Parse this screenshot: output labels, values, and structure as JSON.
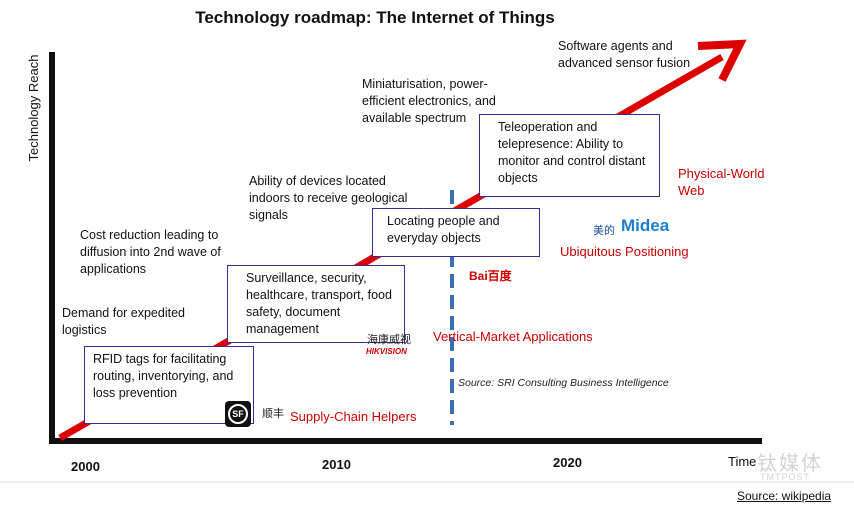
{
  "title": "Technology roadmap: The Internet of Things",
  "y_axis_label": "Technology Reach",
  "x_axis": {
    "ticks": [
      "2000",
      "2010",
      "2020"
    ],
    "label": "Time"
  },
  "annotations": {
    "demand": "Demand for expedited logistics",
    "cost": "Cost reduction leading to diffusion into 2nd wave of applications",
    "ability": "Ability of devices located indoors to receive geological signals",
    "miniaturisation": "Miniaturisation, power-efficient electronics, and available spectrum",
    "software": "Software agents and advanced sensor fusion"
  },
  "boxes": {
    "rfid": "RFID tags for facilitating routing, inventorying, and loss prevention",
    "surveillance": "Surveillance, security, healthcare, transport, food safety, document management",
    "locating": "Locating people and everyday objects",
    "teleoperation": "Teleoperation and telepresence: Ability to monitor and control distant objects"
  },
  "phases": {
    "supply_chain": "Supply-Chain Helpers",
    "vertical": "Vertical-Market Applications",
    "ubiquitous": "Ubiquitous Positioning",
    "physical": "Physical-World Web"
  },
  "logos": {
    "sf_mark": "SF",
    "sf_text": "顺丰",
    "hikvision_cn": "海康威视",
    "hikvision_en": "HIKVISION",
    "baidu": "Bai百度",
    "midea_cn": "美的",
    "midea_en": "Midea"
  },
  "source_note": "Source: SRI Consulting Business Intelligence",
  "credit": "Source: wikipedia",
  "watermark": {
    "cn": "钛媒体",
    "en": "TMTPOST"
  },
  "colors": {
    "arrow": "#dd0000",
    "axis": "#111111",
    "box_border": "#3d2a8c",
    "phase_text": "#cc0000",
    "divider": "#3d6fb0"
  }
}
